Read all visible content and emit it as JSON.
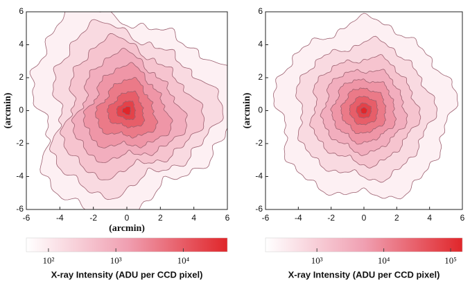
{
  "chart_data": [
    {
      "type": "contour",
      "ylabel": "(arcmin)",
      "xlabel": "(arcmin)",
      "xlim": [
        -6,
        6
      ],
      "ylim": [
        -6,
        6
      ],
      "xticks": [
        -6,
        -4,
        -2,
        0,
        2,
        4,
        6
      ],
      "yticks": [
        -6,
        -4,
        -2,
        0,
        2,
        4,
        6
      ],
      "colors": [
        "#ffffff",
        "#f0a0b2",
        "#e0262a"
      ],
      "colorbar": {
        "label": "X-ray Intensity (ADU per CCD pixel)",
        "log": true,
        "lim": [
          47,
          45000
        ],
        "ticks": [
          {
            "value": 100,
            "label": "10²"
          },
          {
            "value": 1000,
            "label": "10³"
          },
          {
            "value": 10000,
            "label": "10⁴"
          }
        ]
      }
    },
    {
      "type": "contour",
      "ylabel": "(arcmin)",
      "xlim": [
        -6,
        6
      ],
      "ylim": [
        -6,
        6
      ],
      "xticks": [
        -6,
        -4,
        -2,
        0,
        2,
        4,
        6
      ],
      "yticks": [
        -6,
        -4,
        -2,
        0,
        2,
        4,
        6
      ],
      "colors": [
        "#ffffff",
        "#f0a0b2",
        "#e0262a"
      ],
      "colorbar": {
        "label": "X-ray Intensity (ADU per CCD pixel)",
        "log": true,
        "lim": [
          170,
          150000
        ],
        "ticks": [
          {
            "value": 1000,
            "label": "10³"
          },
          {
            "value": 10000,
            "label": "10⁴"
          },
          {
            "value": 100000,
            "label": "10⁵"
          }
        ]
      }
    }
  ]
}
